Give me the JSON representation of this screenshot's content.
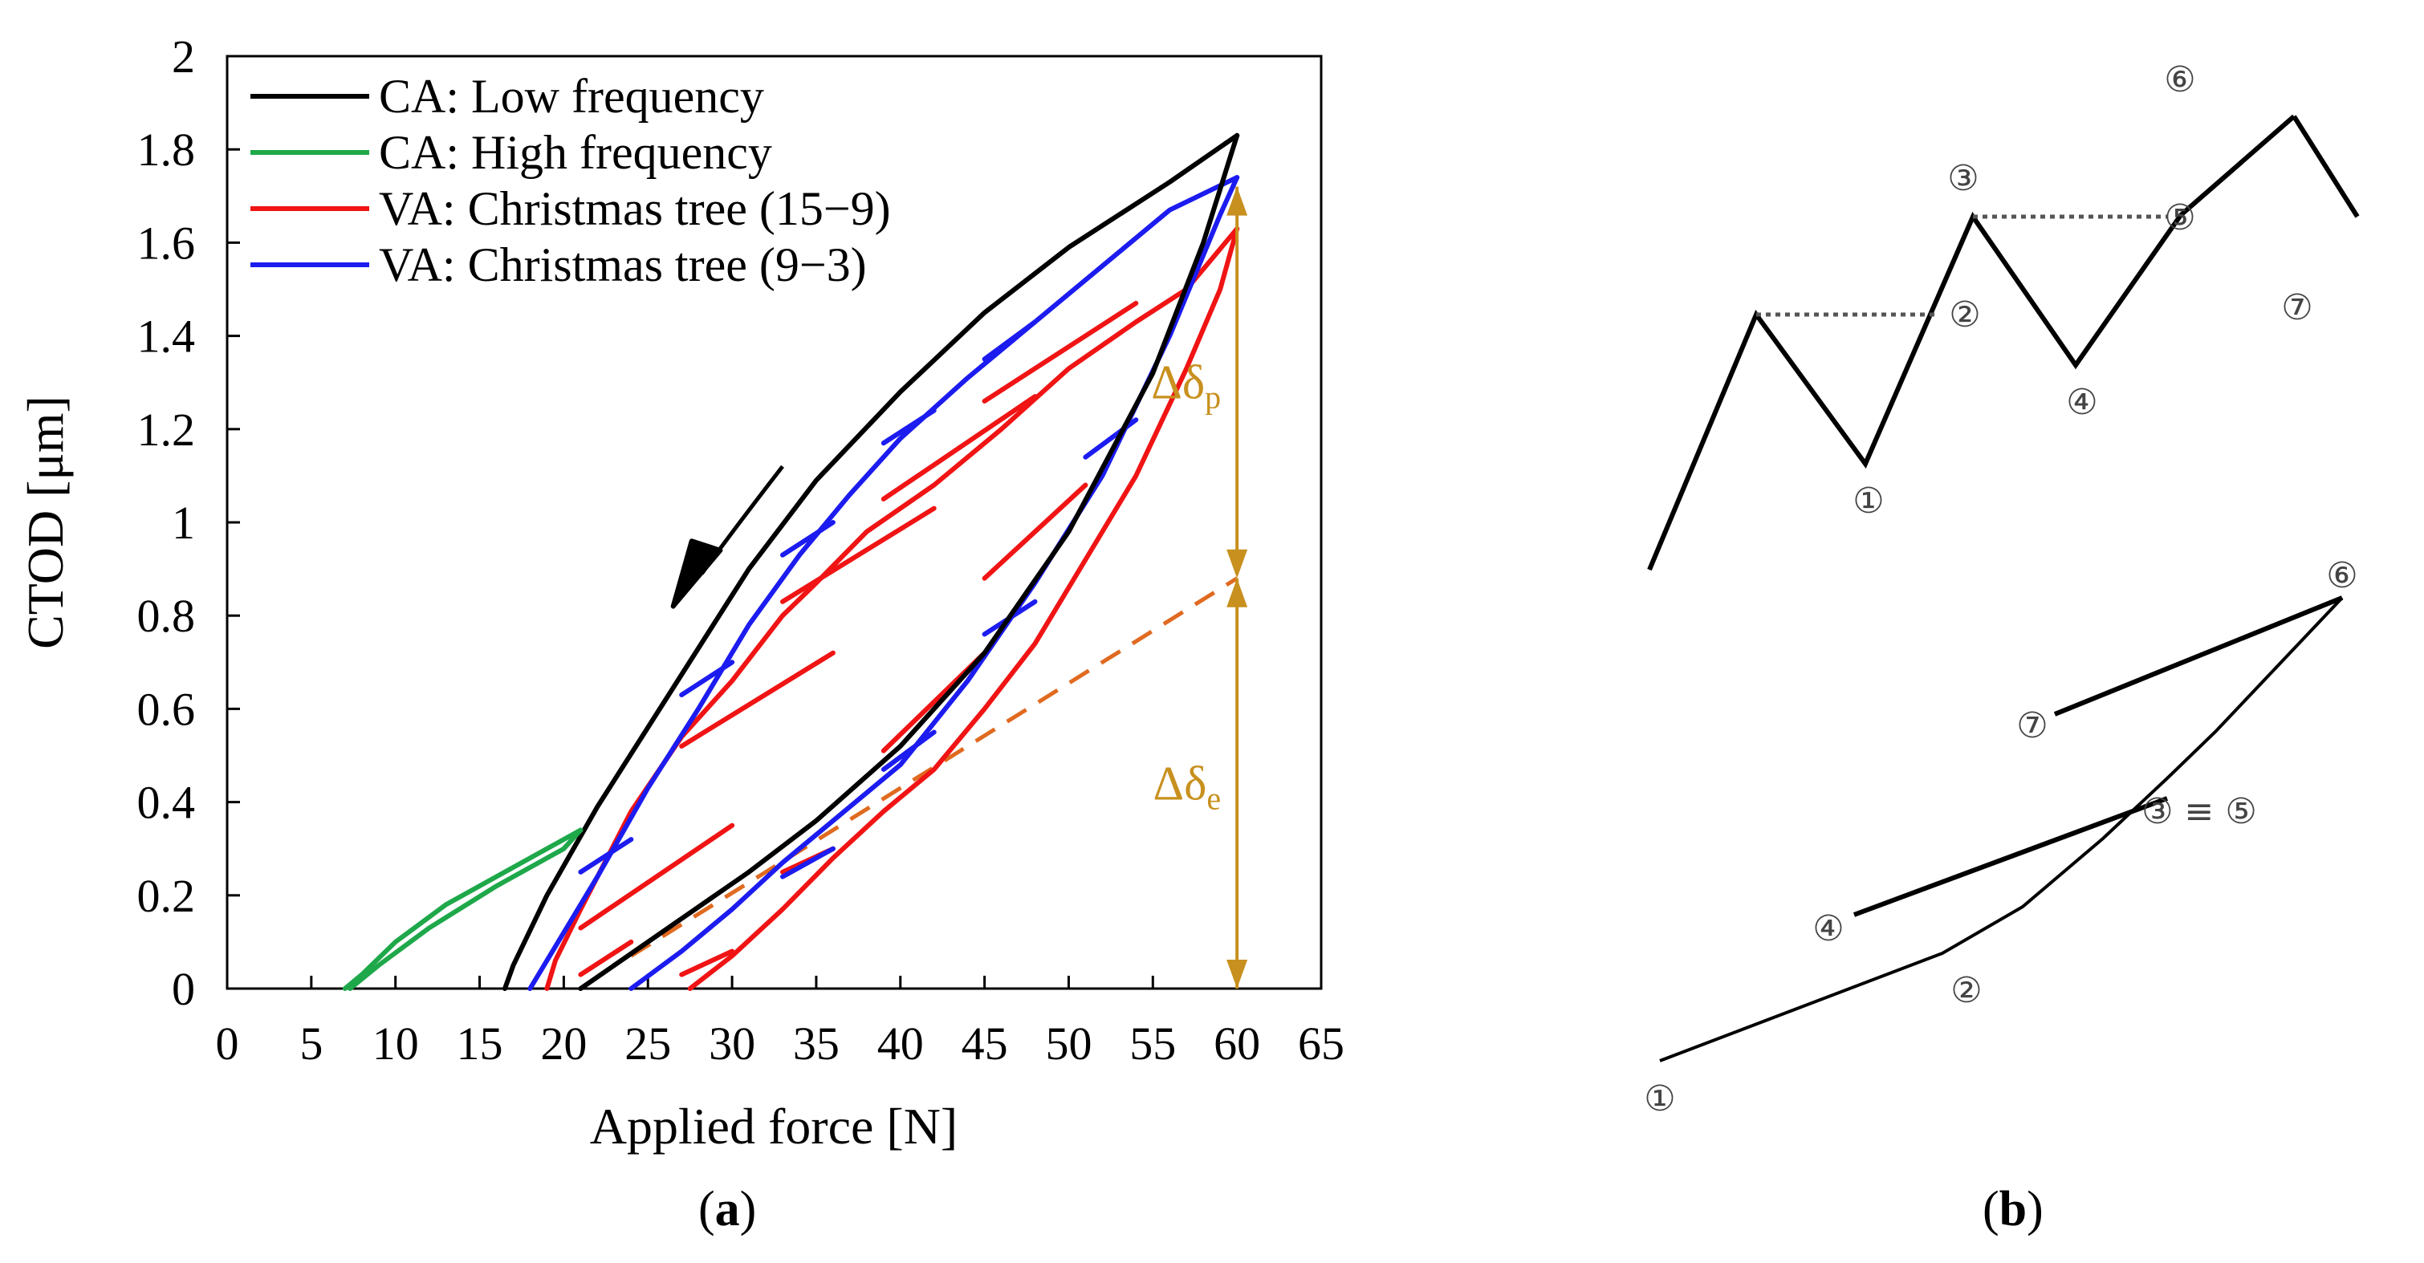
{
  "chart_data": [
    {
      "panel": "a",
      "type": "line",
      "caption": "(a)",
      "xlabel": "Applied force [N]",
      "ylabel": "CTOD [μm]",
      "xlim": [
        0,
        65
      ],
      "ylim": [
        0,
        2
      ],
      "xticks": [
        "0",
        "5",
        "10",
        "15",
        "20",
        "25",
        "30",
        "35",
        "40",
        "45",
        "50",
        "55",
        "60",
        "65"
      ],
      "yticks": [
        "0",
        "0.2",
        "0.4",
        "0.6",
        "0.8",
        "1",
        "1.2",
        "1.4",
        "1.6",
        "1.8",
        "2"
      ],
      "legend_position": "top-left",
      "colors": {
        "black": "#000000",
        "green": "#1ea84a",
        "red": "#f01414",
        "blue": "#1c1cf0",
        "dashed": "#e06a20",
        "annotation": "#c8901e"
      },
      "series": [
        {
          "name": "CA: Low frequency",
          "color": "#000000",
          "segments": [
            [
              [
                60,
                1.83
              ],
              [
                56,
                1.73
              ],
              [
                50,
                1.59
              ],
              [
                45,
                1.45
              ],
              [
                40,
                1.28
              ],
              [
                35,
                1.09
              ],
              [
                31,
                0.9
              ],
              [
                28,
                0.73
              ],
              [
                25,
                0.56
              ],
              [
                22,
                0.39
              ],
              [
                19,
                0.2
              ],
              [
                17,
                0.05
              ],
              [
                16.5,
                0.0
              ]
            ],
            [
              [
                21,
                0.0
              ],
              [
                23,
                0.05
              ],
              [
                27,
                0.15
              ],
              [
                31,
                0.25
              ],
              [
                35,
                0.36
              ],
              [
                40,
                0.52
              ],
              [
                45,
                0.72
              ],
              [
                50,
                0.98
              ],
              [
                55,
                1.32
              ],
              [
                58,
                1.6
              ],
              [
                60,
                1.83
              ]
            ]
          ]
        },
        {
          "name": "CA: High frequency",
          "color": "#1ea84a",
          "segments": [
            [
              [
                21,
                0.34
              ],
              [
                17,
                0.26
              ],
              [
                13,
                0.18
              ],
              [
                10,
                0.1
              ],
              [
                8,
                0.03
              ],
              [
                7,
                0.0
              ]
            ],
            [
              [
                7.3,
                0.0
              ],
              [
                9,
                0.05
              ],
              [
                12,
                0.13
              ],
              [
                16,
                0.22
              ],
              [
                20,
                0.3
              ],
              [
                21,
                0.34
              ]
            ]
          ]
        },
        {
          "name": "VA: Christmas tree (15−9)",
          "color": "#f01414",
          "segments": [
            [
              [
                60,
                1.63
              ],
              [
                57,
                1.5
              ],
              [
                54,
                1.43
              ],
              [
                50,
                1.33
              ],
              [
                46,
                1.2
              ],
              [
                42,
                1.08
              ],
              [
                38,
                0.98
              ],
              [
                35,
                0.87
              ],
              [
                33,
                0.8
              ],
              [
                30,
                0.66
              ],
              [
                27,
                0.54
              ],
              [
                24,
                0.38
              ],
              [
                21,
                0.17
              ],
              [
                19.5,
                0.06
              ],
              [
                19,
                0.0
              ]
            ],
            [
              [
                27.5,
                0.0
              ],
              [
                30,
                0.07
              ],
              [
                33,
                0.17
              ],
              [
                36,
                0.28
              ],
              [
                39,
                0.38
              ],
              [
                42,
                0.47
              ],
              [
                45,
                0.6
              ],
              [
                48,
                0.74
              ],
              [
                51,
                0.92
              ],
              [
                54,
                1.1
              ],
              [
                57,
                1.33
              ],
              [
                59,
                1.5
              ],
              [
                60,
                1.63
              ]
            ],
            [
              [
                45,
                1.26
              ],
              [
                54,
                1.47
              ]
            ],
            [
              [
                39,
                1.05
              ],
              [
                48,
                1.27
              ]
            ],
            [
              [
                33,
                0.83
              ],
              [
                42,
                1.03
              ]
            ],
            [
              [
                27,
                0.52
              ],
              [
                36,
                0.72
              ]
            ],
            [
              [
                21,
                0.13
              ],
              [
                30,
                0.35
              ]
            ],
            [
              [
                21,
                0.03
              ],
              [
                24,
                0.1
              ]
            ],
            [
              [
                27,
                0.03
              ],
              [
                30,
                0.08
              ]
            ],
            [
              [
                33,
                0.25
              ],
              [
                36,
                0.3
              ]
            ],
            [
              [
                39,
                0.51
              ],
              [
                45,
                0.72
              ]
            ],
            [
              [
                45,
                0.88
              ],
              [
                51,
                1.08
              ]
            ]
          ]
        },
        {
          "name": "VA: Christmas tree (9−3)",
          "color": "#1c1cf0",
          "segments": [
            [
              [
                60,
                1.74
              ],
              [
                56,
                1.67
              ],
              [
                52,
                1.55
              ],
              [
                48,
                1.43
              ],
              [
                44,
                1.31
              ],
              [
                40,
                1.18
              ],
              [
                37,
                1.06
              ],
              [
                34,
                0.93
              ],
              [
                31,
                0.78
              ],
              [
                28,
                0.6
              ],
              [
                25,
                0.43
              ],
              [
                22,
                0.24
              ],
              [
                19,
                0.06
              ],
              [
                18,
                0.0
              ]
            ],
            [
              [
                24,
                0.0
              ],
              [
                27,
                0.08
              ],
              [
                30,
                0.17
              ],
              [
                33,
                0.27
              ],
              [
                36,
                0.36
              ],
              [
                40,
                0.48
              ],
              [
                44,
                0.66
              ],
              [
                48,
                0.87
              ],
              [
                52,
                1.1
              ],
              [
                56,
                1.4
              ],
              [
                59,
                1.66
              ],
              [
                60,
                1.74
              ]
            ],
            [
              [
                45,
                1.35
              ],
              [
                48,
                1.43
              ]
            ],
            [
              [
                39,
                1.17
              ],
              [
                42,
                1.24
              ]
            ],
            [
              [
                33,
                0.93
              ],
              [
                36,
                1.0
              ]
            ],
            [
              [
                27,
                0.63
              ],
              [
                30,
                0.7
              ]
            ],
            [
              [
                21,
                0.25
              ],
              [
                24,
                0.32
              ]
            ],
            [
              [
                33,
                0.24
              ],
              [
                36,
                0.3
              ]
            ],
            [
              [
                39,
                0.47
              ],
              [
                42,
                0.55
              ]
            ],
            [
              [
                45,
                0.76
              ],
              [
                48,
                0.83
              ]
            ],
            [
              [
                51,
                1.14
              ],
              [
                54,
                1.22
              ]
            ]
          ]
        }
      ],
      "dashed_line": {
        "color": "#e06a20",
        "points": [
          [
            24,
            0.07
          ],
          [
            60,
            0.88
          ]
        ]
      },
      "annotations": [
        {
          "text": "Δδ",
          "subscript": "p",
          "x": 60,
          "y_from": 0.88,
          "y_to": 1.72
        },
        {
          "text": "Δδ",
          "subscript": "e",
          "x": 60,
          "y_from": 0.0,
          "y_to": 0.88
        }
      ]
    },
    {
      "panel": "b",
      "type": "diagram",
      "caption": "(b)",
      "top_labels": [
        "①",
        "②",
        "③",
        "④",
        "⑤",
        "⑥",
        "⑦"
      ],
      "bottom_labels": [
        "①",
        "②",
        "③ ≡ ⑤",
        "④",
        "⑥",
        "⑦"
      ]
    }
  ]
}
